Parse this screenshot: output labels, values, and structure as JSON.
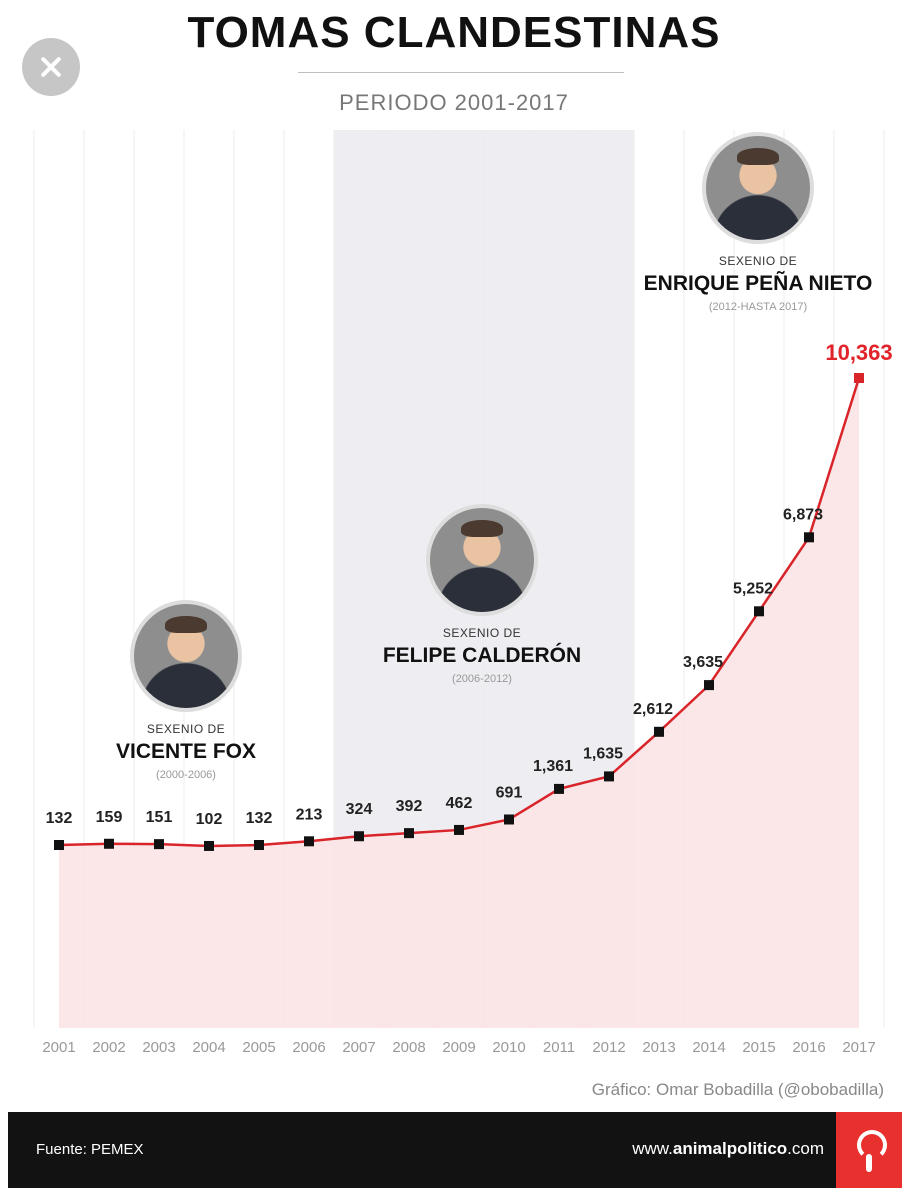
{
  "header": {
    "title": "TOMAS CLANDESTINAS",
    "subtitle": "PERIODO 2001-2017"
  },
  "presidents": [
    {
      "kicker": "SEXENIO DE",
      "name": "VICENTE FOX",
      "period": "(2000-2006)"
    },
    {
      "kicker": "SEXENIO DE",
      "name": "FELIPE CALDERÓN",
      "period": "(2006-2012)"
    },
    {
      "kicker": "SEXENIO DE",
      "name": "ENRIQUE PEÑA NIETO",
      "period": "(2012-HASTA 2017)"
    }
  ],
  "credit": "Gráfico: Omar Bobadilla (@obobadilla)",
  "footer": {
    "source": "Fuente: PEMEX",
    "site_prefix": "www.",
    "site_brand": "animalpolitico",
    "site_suffix": ".com"
  },
  "colors": {
    "line": "#d9242a",
    "fill": "#fbe3e6",
    "highlight_band": "#eeeef2",
    "marker": "#111111",
    "last_label": "#e0242a"
  },
  "chart_data": {
    "type": "area",
    "title": "TOMAS CLANDESTINAS",
    "subtitle": "PERIODO 2001-2017",
    "x": [
      "2001",
      "2002",
      "2003",
      "2004",
      "2005",
      "2006",
      "2007",
      "2008",
      "2009",
      "2010",
      "2011",
      "2012",
      "2013",
      "2014",
      "2015",
      "2016",
      "2017"
    ],
    "values": [
      132,
      159,
      151,
      102,
      132,
      213,
      324,
      392,
      462,
      691,
      1361,
      1635,
      2612,
      3635,
      5252,
      6873,
      10363
    ],
    "labels": [
      "132",
      "159",
      "151",
      "102",
      "132",
      "213",
      "324",
      "392",
      "462",
      "691",
      "1,361",
      "1,635",
      "2,612",
      "3,635",
      "5,252",
      "6,873",
      "10,363"
    ],
    "ylim": [
      0,
      10363
    ],
    "grid": "vertical",
    "highlight_range": [
      "2007",
      "2012"
    ],
    "source": "Fuente: PEMEX"
  }
}
